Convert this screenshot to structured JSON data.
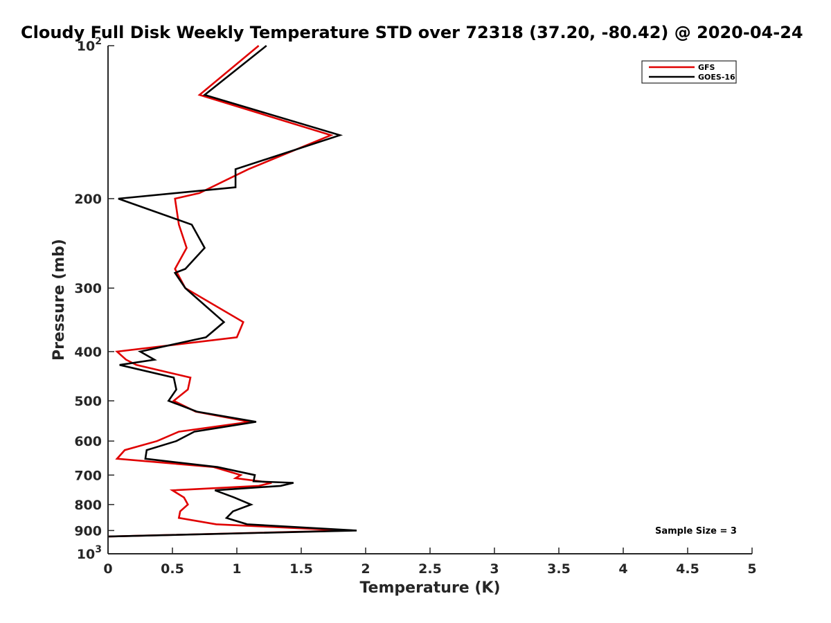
{
  "chart_data": {
    "type": "line",
    "title": "Cloudy Full Disk Weekly Temperature STD over 72318 (37.20, -80.42) @ 2020-04-24",
    "xlabel": "Temperature (K)",
    "ylabel": "Pressure (mb)",
    "xlim": [
      0,
      5
    ],
    "ylim": [
      1000,
      100
    ],
    "yscale": "log",
    "grid": false,
    "legend_position": "top-right",
    "annotation": "Sample Size = 3",
    "x_ticks": [
      0,
      0.5,
      1,
      1.5,
      2,
      2.5,
      3,
      3.5,
      4,
      4.5,
      5
    ],
    "x_tick_labels": [
      "0",
      "0.5",
      "1",
      "1.5",
      "2",
      "2.5",
      "3",
      "3.5",
      "4",
      "4.5",
      "5"
    ],
    "y_ticks": [
      100,
      200,
      300,
      400,
      500,
      600,
      700,
      800,
      900,
      1000
    ],
    "y_tick_labels": [
      {
        "base": "10",
        "exp": "2"
      },
      {
        "base": "200",
        "exp": ""
      },
      {
        "base": "300",
        "exp": ""
      },
      {
        "base": "400",
        "exp": ""
      },
      {
        "base": "500",
        "exp": ""
      },
      {
        "base": "600",
        "exp": ""
      },
      {
        "base": "700",
        "exp": ""
      },
      {
        "base": "800",
        "exp": ""
      },
      {
        "base": "900",
        "exp": ""
      },
      {
        "base": "10",
        "exp": "3"
      }
    ],
    "series": [
      {
        "name": "GFS",
        "color": "#e00000",
        "points": [
          [
            1.17,
            100
          ],
          [
            0.71,
            125
          ],
          [
            1.73,
            150
          ],
          [
            1.09,
            175
          ],
          [
            0.71,
            195
          ],
          [
            0.52,
            200
          ],
          [
            0.55,
            225
          ],
          [
            0.61,
            250
          ],
          [
            0.52,
            275
          ],
          [
            0.6,
            300
          ],
          [
            1.05,
            350
          ],
          [
            1.0,
            375
          ],
          [
            0.07,
            400
          ],
          [
            0.14,
            415
          ],
          [
            0.22,
            425
          ],
          [
            0.64,
            450
          ],
          [
            0.62,
            475
          ],
          [
            0.51,
            500
          ],
          [
            0.68,
            525
          ],
          [
            1.1,
            550
          ],
          [
            0.55,
            575
          ],
          [
            0.38,
            600
          ],
          [
            0.13,
            625
          ],
          [
            0.07,
            650
          ],
          [
            0.82,
            675
          ],
          [
            1.03,
            700
          ],
          [
            0.99,
            710
          ],
          [
            1.27,
            725
          ],
          [
            1.17,
            735
          ],
          [
            0.5,
            750
          ],
          [
            0.59,
            775
          ],
          [
            0.62,
            800
          ],
          [
            0.56,
            825
          ],
          [
            0.55,
            850
          ],
          [
            0.84,
            875
          ],
          [
            1.86,
            900
          ],
          [
            0.0,
            925
          ]
        ]
      },
      {
        "name": "GOES-16",
        "color": "#000000",
        "points": [
          [
            1.23,
            100
          ],
          [
            0.75,
            125
          ],
          [
            1.8,
            150
          ],
          [
            0.99,
            175
          ],
          [
            0.99,
            190
          ],
          [
            0.08,
            200
          ],
          [
            0.65,
            225
          ],
          [
            0.75,
            250
          ],
          [
            0.6,
            275
          ],
          [
            0.52,
            280
          ],
          [
            0.6,
            300
          ],
          [
            0.9,
            350
          ],
          [
            0.76,
            375
          ],
          [
            0.25,
            400
          ],
          [
            0.36,
            415
          ],
          [
            0.09,
            425
          ],
          [
            0.51,
            450
          ],
          [
            0.53,
            475
          ],
          [
            0.47,
            500
          ],
          [
            0.69,
            525
          ],
          [
            1.15,
            550
          ],
          [
            0.67,
            575
          ],
          [
            0.53,
            600
          ],
          [
            0.3,
            625
          ],
          [
            0.29,
            650
          ],
          [
            0.85,
            675
          ],
          [
            1.14,
            700
          ],
          [
            1.13,
            720
          ],
          [
            1.44,
            725
          ],
          [
            1.34,
            735
          ],
          [
            0.83,
            750
          ],
          [
            0.98,
            775
          ],
          [
            1.11,
            800
          ],
          [
            0.97,
            825
          ],
          [
            0.92,
            850
          ],
          [
            1.08,
            875
          ],
          [
            1.93,
            900
          ],
          [
            0.0,
            925
          ]
        ]
      }
    ]
  }
}
